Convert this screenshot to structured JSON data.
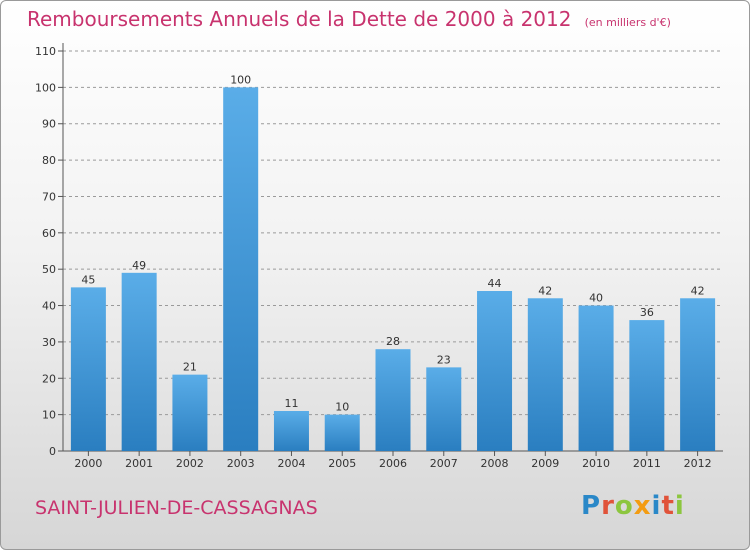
{
  "header": {
    "title": "Remboursements Annuels de la Dette de 2000 à 2012",
    "unit_note": "(en milliers d'€)"
  },
  "footer": {
    "town": "SAINT-JULIEN-DE-CASSAGNAS",
    "brand": "Proxiti"
  },
  "colors": {
    "title": "#c8336e",
    "bar_top": "#5aade8",
    "bar_bottom": "#2a7ec0"
  },
  "chart_data": {
    "type": "bar",
    "title": "Remboursements Annuels de la Dette de 2000 à 2012",
    "categories": [
      "2000",
      "2001",
      "2002",
      "2003",
      "2004",
      "2005",
      "2006",
      "2007",
      "2008",
      "2009",
      "2010",
      "2011",
      "2012"
    ],
    "values": [
      45,
      49,
      21,
      100,
      11,
      10,
      28,
      23,
      44,
      42,
      40,
      36,
      42
    ],
    "ylim": [
      0,
      110
    ],
    "yticks": [
      0,
      10,
      20,
      30,
      40,
      50,
      60,
      70,
      80,
      90,
      100,
      110
    ],
    "grid": true,
    "data_labels": true
  }
}
